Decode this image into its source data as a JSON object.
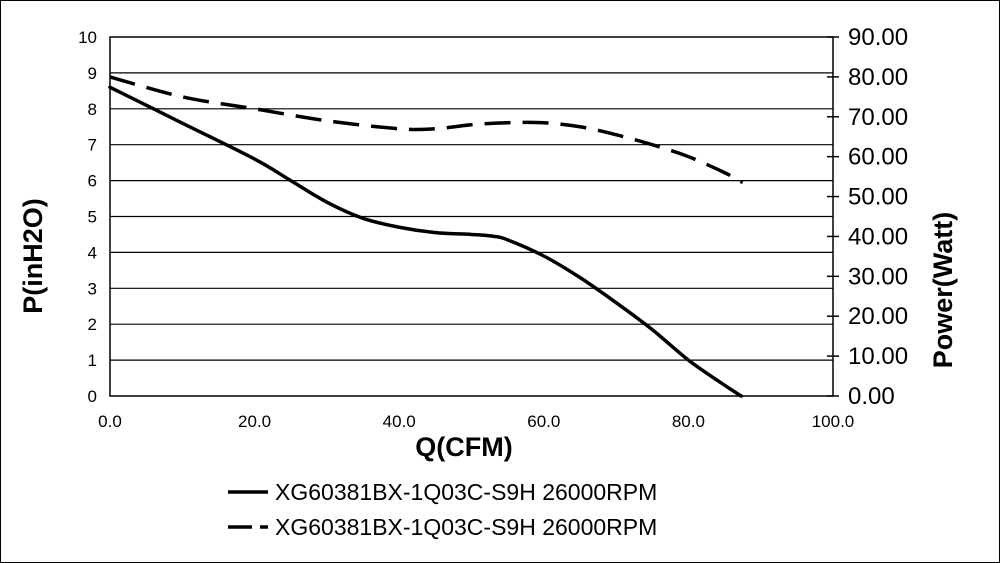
{
  "chart_data": {
    "type": "line",
    "xlabel": "Q(CFM)",
    "ylabel_left": "P(inH2O)",
    "ylabel_right": "Power(Watt)",
    "xlim": [
      0,
      100
    ],
    "ylim_left": [
      0,
      10
    ],
    "ylim_right": [
      0,
      90
    ],
    "x_ticks": [
      "0.0",
      "20.0",
      "40.0",
      "60.0",
      "80.0",
      "100.0"
    ],
    "y_ticks_left": [
      "0",
      "1",
      "2",
      "3",
      "4",
      "5",
      "6",
      "7",
      "8",
      "9",
      "10"
    ],
    "y_ticks_right": [
      "0.00",
      "10.00",
      "20.00",
      "30.00",
      "40.00",
      "50.00",
      "60.00",
      "70.00",
      "80.00",
      "90.00"
    ],
    "grid": "horizontal",
    "legend_position": "bottom",
    "series": [
      {
        "name": "XG60381BX-1Q03C-S9H 26000RPM",
        "axis": "left",
        "style": "solid",
        "x": [
          0,
          10,
          20,
          25,
          30,
          35,
          40,
          45,
          50,
          53,
          55,
          60,
          65,
          70,
          75,
          80,
          85,
          87.3
        ],
        "y": [
          8.6,
          7.6,
          6.6,
          6.0,
          5.4,
          4.95,
          4.7,
          4.55,
          4.5,
          4.45,
          4.35,
          3.9,
          3.3,
          2.6,
          1.85,
          1.0,
          0.3,
          0.0
        ]
      },
      {
        "name": "XG60381BX-1Q03C-S9H 26000RPM",
        "axis": "right",
        "style": "dashed",
        "x": [
          0,
          10,
          20,
          30,
          40,
          45,
          50,
          55,
          60,
          65,
          70,
          75,
          80,
          85,
          87.5
        ],
        "y": [
          80.0,
          75.0,
          72.0,
          69.0,
          67.0,
          67.0,
          68.0,
          68.5,
          68.5,
          67.5,
          65.5,
          63.0,
          60.0,
          56.0,
          53.5
        ]
      }
    ]
  }
}
